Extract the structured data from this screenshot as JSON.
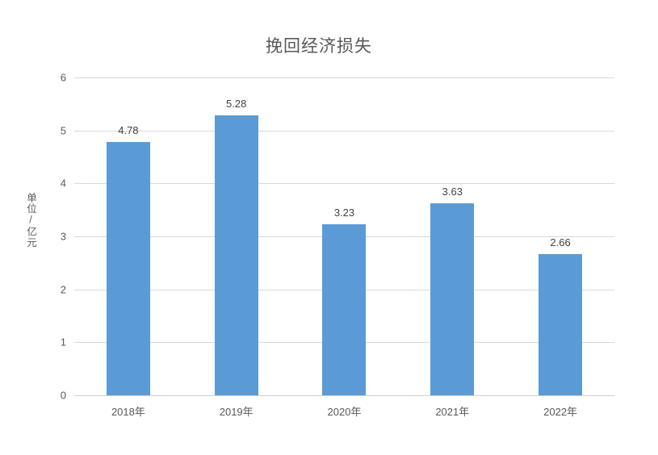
{
  "chart_data": {
    "type": "bar",
    "title": "挽回经济损失",
    "ylabel": "单位/亿元",
    "xlabel": "",
    "categories": [
      "2018年",
      "2019年",
      "2020年",
      "2021年",
      "2022年"
    ],
    "values": [
      4.78,
      5.28,
      3.23,
      3.63,
      2.66
    ],
    "data_labels": [
      "4.78",
      "5.28",
      "3.23",
      "3.63",
      "2.66"
    ],
    "ylim": [
      0,
      6
    ],
    "yticks": [
      0,
      1,
      2,
      3,
      4,
      5,
      6
    ],
    "grid": true,
    "legend_position": "none",
    "bar_color": "#5B9BD5",
    "gridline_color": "#D9D9D9",
    "axis_text_color": "#595959",
    "data_label_color": "#404040",
    "title_color": "#595959",
    "background_color": "#FFFFFF"
  }
}
